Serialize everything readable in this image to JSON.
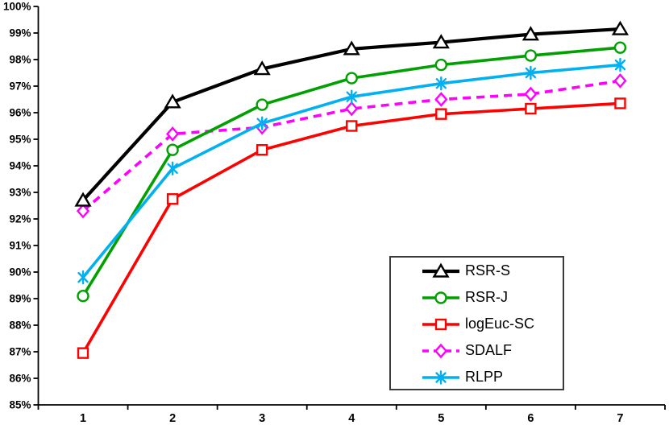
{
  "chart_data": {
    "type": "line",
    "title": "",
    "xlabel": "",
    "ylabel": "",
    "grid": false,
    "x_categories": [
      "1",
      "2",
      "3",
      "4",
      "5",
      "6",
      "7"
    ],
    "y_axis": {
      "min": 85,
      "max": 100,
      "step": 1,
      "format": "percent",
      "tick_labels": [
        "85%",
        "86%",
        "87%",
        "88%",
        "89%",
        "90%",
        "91%",
        "92%",
        "93%",
        "94%",
        "95%",
        "96%",
        "97%",
        "98%",
        "99%",
        "100%"
      ]
    },
    "series": [
      {
        "name": "RSR-S",
        "color": "#000000",
        "marker": "triangle",
        "line": "solid",
        "values": [
          92.7,
          96.4,
          97.65,
          98.4,
          98.65,
          98.95,
          99.15
        ]
      },
      {
        "name": "RSR-J",
        "color": "#00a000",
        "marker": "circle",
        "line": "solid",
        "values": [
          89.1,
          94.6,
          96.3,
          97.3,
          97.8,
          98.15,
          98.45
        ]
      },
      {
        "name": "logEuc-SC",
        "color": "#ff0000",
        "marker": "square",
        "line": "solid",
        "values": [
          86.95,
          92.75,
          94.6,
          95.5,
          95.95,
          96.15,
          96.35
        ]
      },
      {
        "name": "SDALF",
        "color": "#ff00ff",
        "marker": "diamond",
        "line": "dashed",
        "values": [
          92.3,
          95.2,
          95.45,
          96.15,
          96.5,
          96.7,
          97.2
        ]
      },
      {
        "name": "RLPP",
        "color": "#00b0f0",
        "marker": "star",
        "line": "solid",
        "values": [
          89.8,
          93.9,
          95.6,
          96.6,
          97.1,
          97.5,
          97.8
        ]
      }
    ],
    "legend": {
      "position": "inside-bottom-right",
      "entries": [
        "RSR-S",
        "RSR-J",
        "logEuc-SC",
        "SDALF",
        "RLPP"
      ]
    },
    "axis_color": "#000000",
    "text_color": "#000000"
  }
}
